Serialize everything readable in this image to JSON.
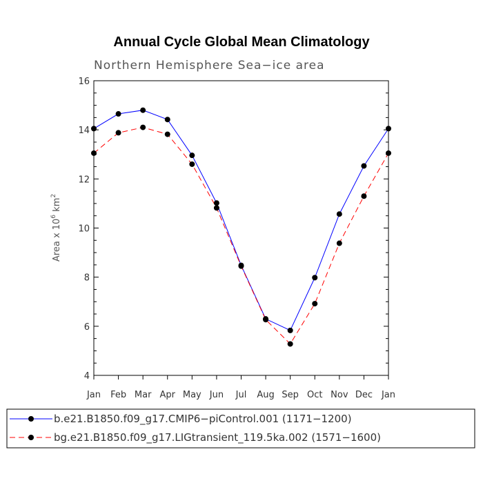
{
  "chart_data": {
    "type": "line",
    "title": "Annual Cycle Global Mean Climatology",
    "subtitle": "Northern Hemisphere Sea−ice area",
    "ylabel": "Area x 10",
    "ylabel_exp": "6",
    "ylabel_unit": " km",
    "ylabel_unit_exp": "2",
    "ylim": [
      4,
      16
    ],
    "yticks": [
      4,
      6,
      8,
      10,
      12,
      14,
      16
    ],
    "categories": [
      "Jan",
      "Feb",
      "Mar",
      "Apr",
      "May",
      "Jun",
      "Jul",
      "Aug",
      "Sep",
      "Oct",
      "Nov",
      "Dec",
      "Jan"
    ],
    "series": [
      {
        "name": "b.e21.B1850.f09_g17.CMIP6−piControl.001 (1171−1200)",
        "color": "#0000ff",
        "dash": "solid",
        "values": [
          14.05,
          14.65,
          14.8,
          14.42,
          12.96,
          11.02,
          8.48,
          6.3,
          5.83,
          7.98,
          10.57,
          12.53,
          14.05
        ]
      },
      {
        "name": "bg.e21.B1850.f09_g17.LIGtransient_119.5ka.002 (1571−1600)",
        "color": "#ff0000",
        "dash": "dashed",
        "values": [
          13.05,
          13.88,
          14.1,
          13.82,
          12.6,
          10.82,
          8.45,
          6.27,
          5.28,
          6.92,
          9.38,
          11.3,
          13.05
        ]
      }
    ]
  }
}
